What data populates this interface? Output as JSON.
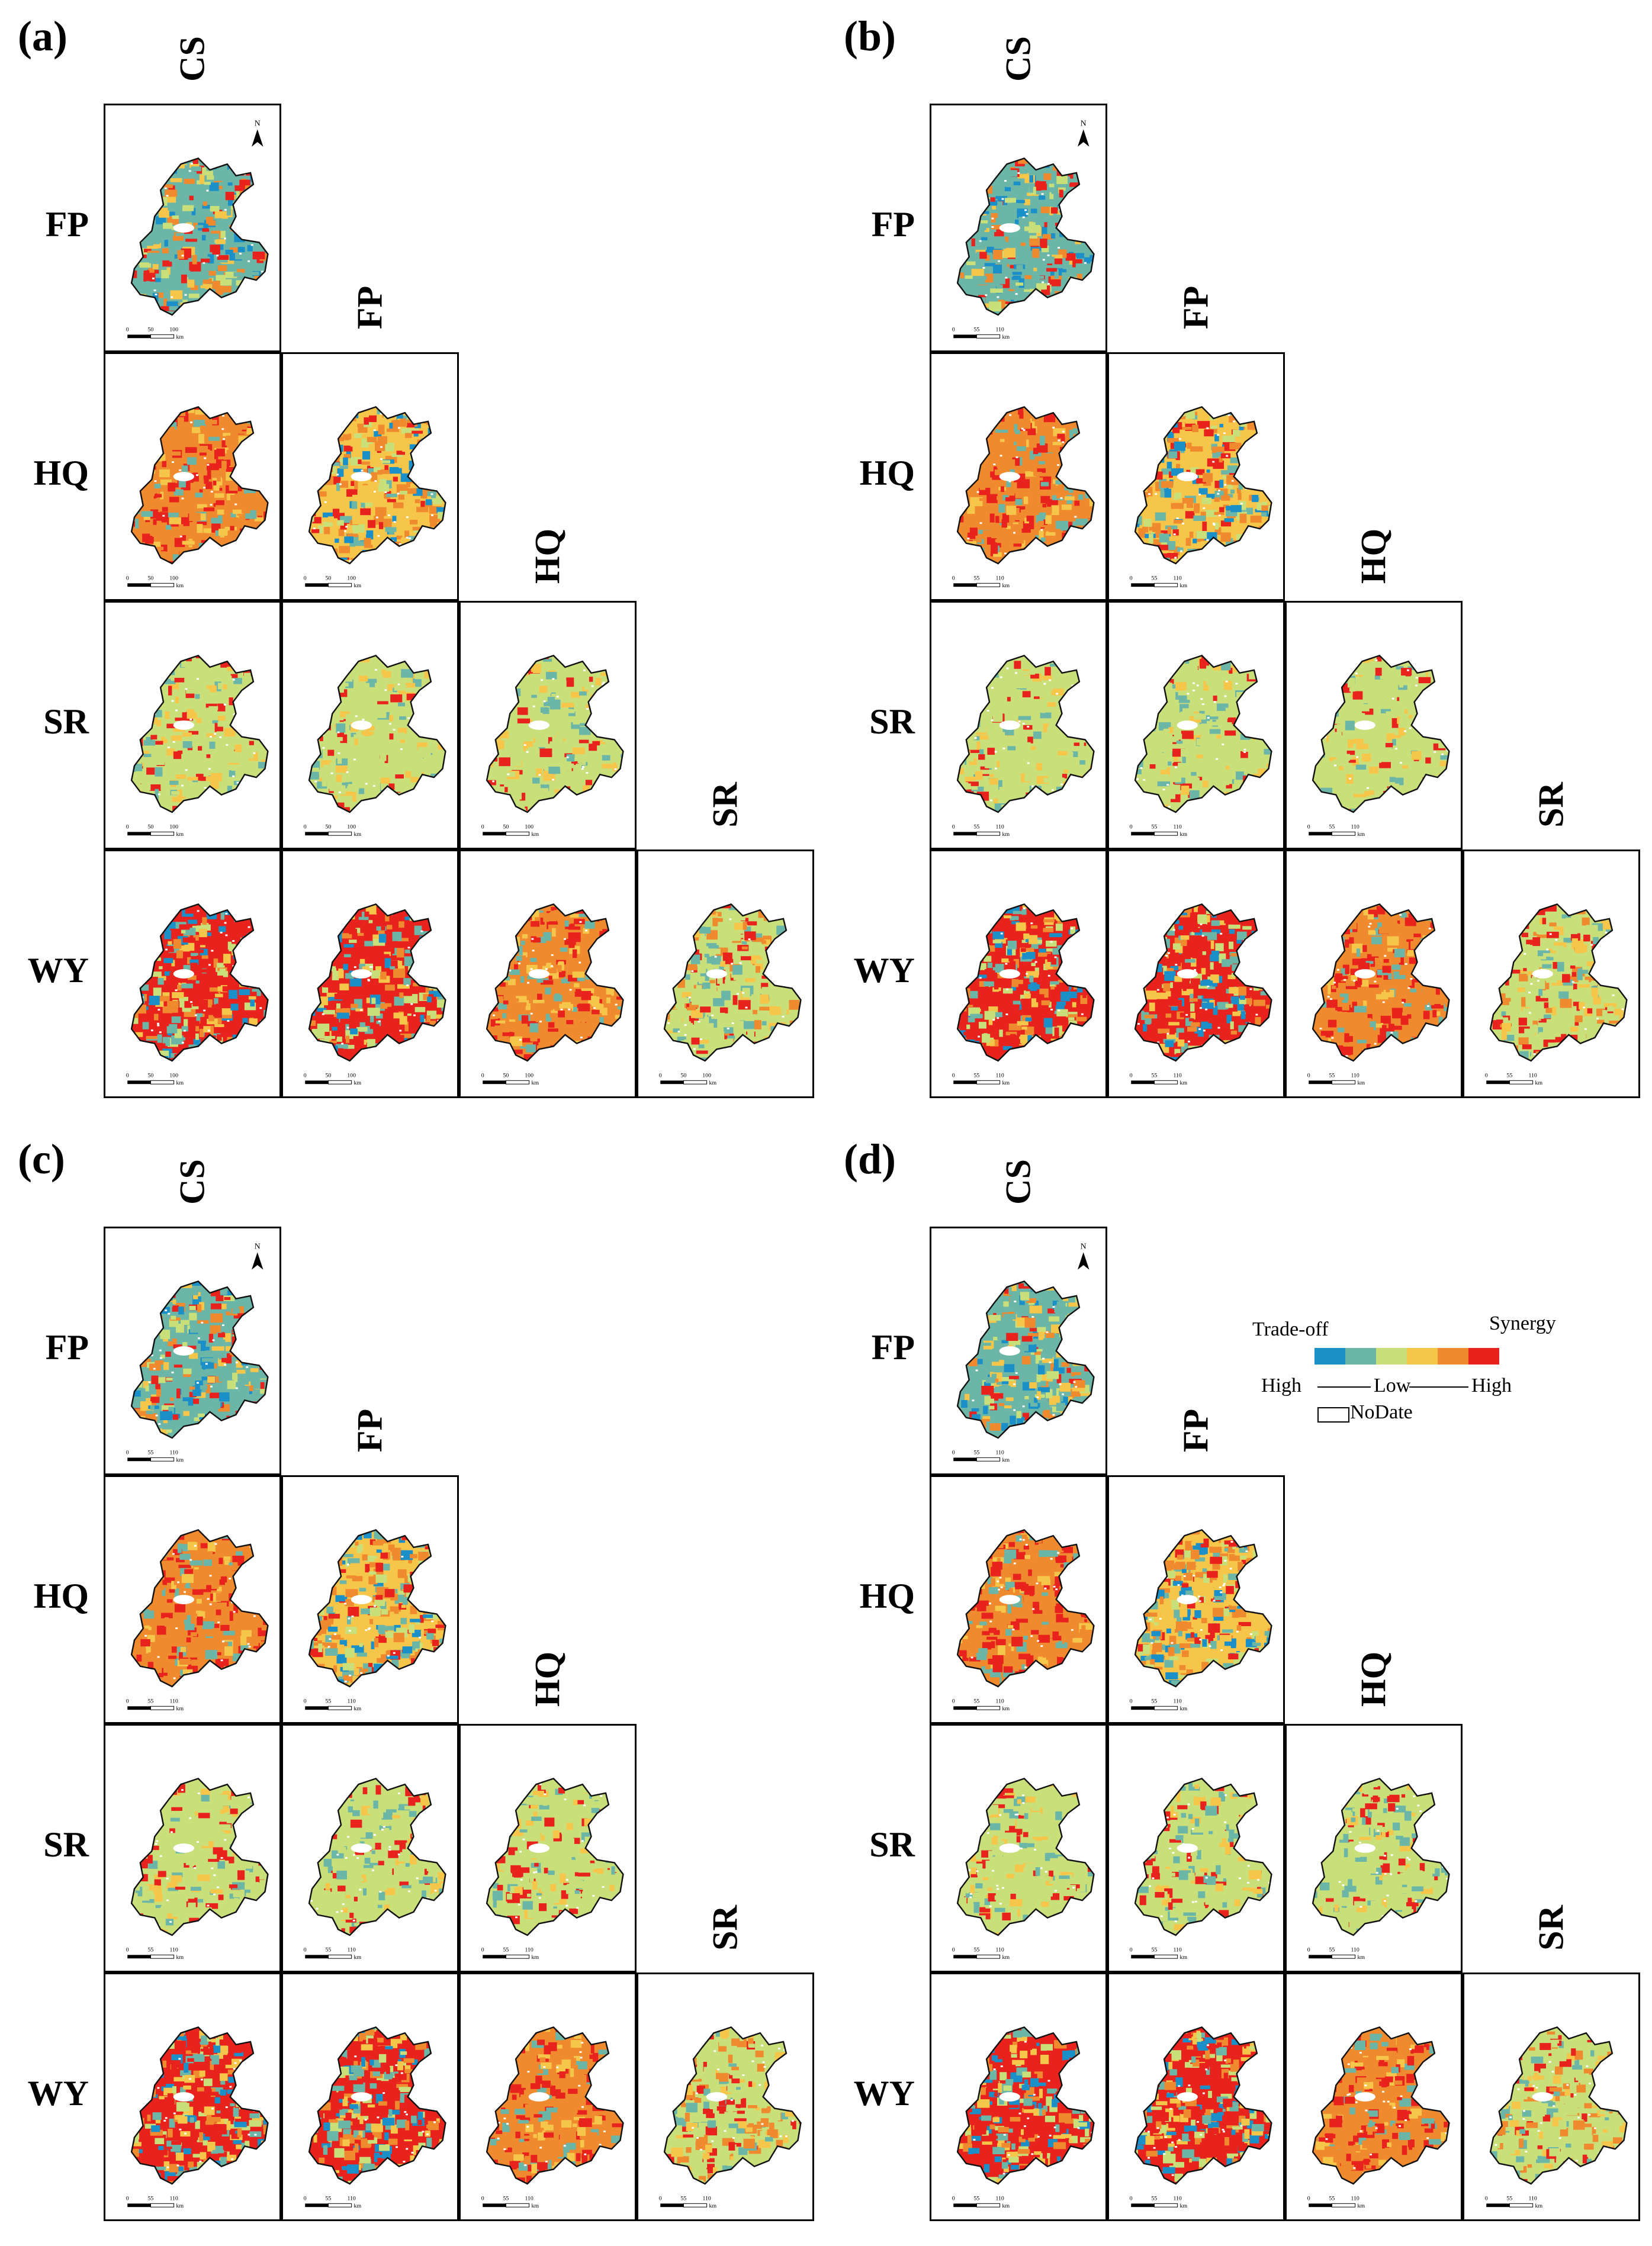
{
  "figure": {
    "panels": [
      {
        "label": "(a)",
        "scale_ticks": [
          "0",
          "50",
          "100"
        ],
        "scale_unit": "km",
        "variant": "a"
      },
      {
        "label": "(b)",
        "scale_ticks": [
          "0",
          "55",
          "110"
        ],
        "scale_unit": "km",
        "variant": "b"
      },
      {
        "label": "(c)",
        "scale_ticks": [
          "0",
          "55",
          "110"
        ],
        "scale_unit": "km",
        "variant": "c"
      },
      {
        "label": "(d)",
        "scale_ticks": [
          "0",
          "55",
          "110"
        ],
        "scale_unit": "km",
        "variant": "d"
      }
    ],
    "column_headers": [
      "CS",
      "FP",
      "HQ",
      "SR"
    ],
    "row_headers": [
      "FP",
      "HQ",
      "SR",
      "WY"
    ],
    "north_label": "N",
    "cell_palettes": {
      "CS-FP": "mixed_cool",
      "CS-HQ": "warm",
      "FP-HQ": "warm_mixed",
      "CS-SR": "green",
      "FP-SR": "green",
      "HQ-SR": "green",
      "CS-WY": "mixed",
      "FP-WY": "mixed",
      "HQ-WY": "warm",
      "SR-WY": "green_mixed"
    }
  },
  "legend": {
    "tradeoff_label": "Trade-off",
    "synergy_label": "Synergy",
    "high_left": "High",
    "low": "Low",
    "high_right": "High",
    "nodata_label": "NoDate",
    "colors": [
      "#1a8fc8",
      "#6cb6a8",
      "#c9df7a",
      "#f6c64a",
      "#f08a2e",
      "#e8231e"
    ]
  }
}
